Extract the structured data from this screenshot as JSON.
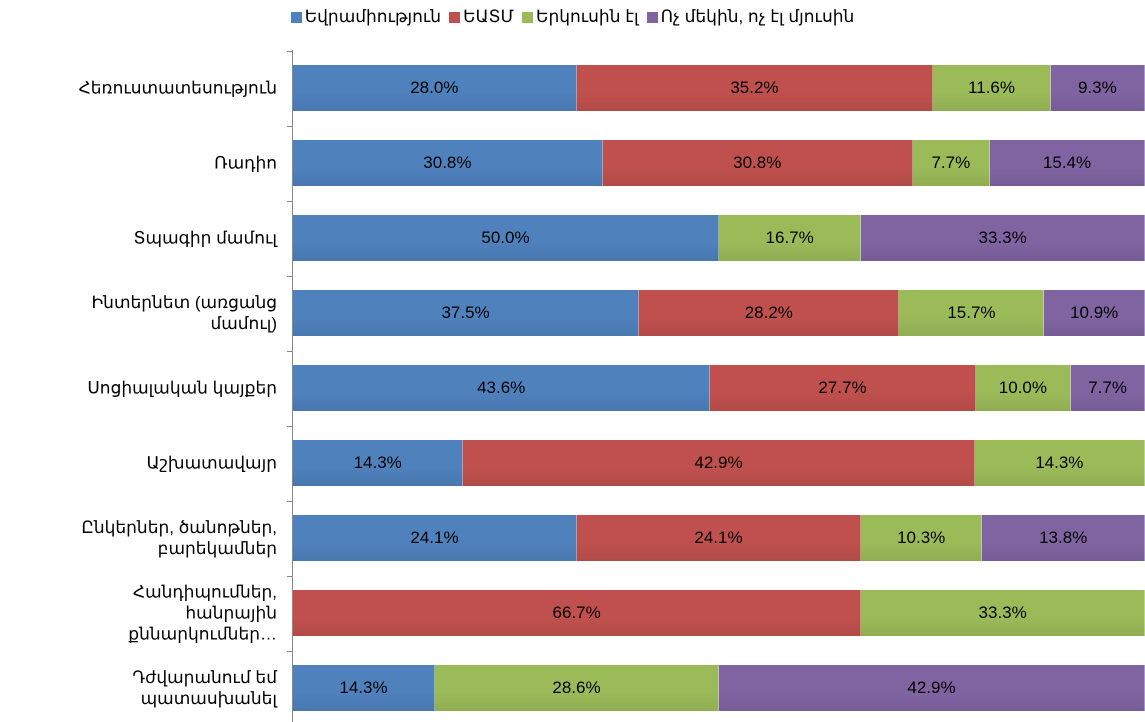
{
  "chart_data": {
    "type": "bar",
    "orientation": "horizontal",
    "stacked": "percent",
    "categories": [
      "Հեռուստատեսություն",
      "Ռադիո",
      "Տպագիր մամուլ",
      "Ինտերնետ (առցանց մամուլ)",
      "Սոցիալական կայքեր",
      "Աշխատավայր",
      "Ընկերներ, ծանոթներ, բարեկամներ",
      "Հանդիպումներ, հանրային քննարկումներ…",
      "Դժվարանում եմ պատասխանել"
    ],
    "series": [
      {
        "name": "Եվրամիություն",
        "color": "#4f81bd",
        "values": [
          28.0,
          30.8,
          50.0,
          37.5,
          43.6,
          14.3,
          24.1,
          null,
          14.3
        ],
        "value_labels": [
          "28.0%",
          "30.8%",
          "50.0%",
          "37.5%",
          "43.6%",
          "14.3%",
          "24.1%",
          null,
          "14.3%"
        ]
      },
      {
        "name": "ԵԱՏՄ",
        "color": "#c0504d",
        "values": [
          35.2,
          30.8,
          null,
          28.2,
          27.7,
          42.9,
          24.1,
          66.7,
          null
        ],
        "value_labels": [
          "35.2%",
          "30.8%",
          null,
          "28.2%",
          "27.7%",
          "42.9%",
          "24.1%",
          "66.7%",
          null
        ]
      },
      {
        "name": "Երկուսին էլ",
        "color": "#9bbb59",
        "values": [
          11.6,
          7.7,
          16.7,
          15.7,
          10.0,
          14.3,
          10.3,
          33.3,
          28.6
        ],
        "value_labels": [
          "11.6%",
          "7.7%",
          "16.7%",
          "15.7%",
          "10.0%",
          "14.3%",
          "10.3%",
          "33.3%",
          "28.6%"
        ]
      },
      {
        "name": "Ոչ մեկին, ոչ էլ մյուսին",
        "color": "#8064a2",
        "values": [
          9.3,
          15.4,
          33.3,
          10.9,
          7.7,
          null,
          13.8,
          null,
          42.9
        ],
        "value_labels": [
          "9.3%",
          "15.4%",
          "33.3%",
          "10.9%",
          "7.7%",
          null,
          "13.8%",
          null,
          "42.9%"
        ]
      }
    ],
    "legend": "top"
  }
}
